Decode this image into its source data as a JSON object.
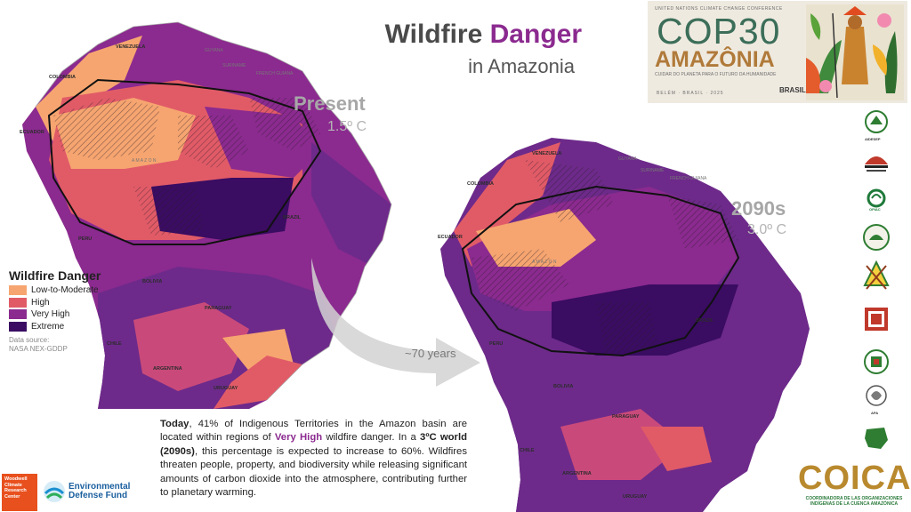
{
  "header": {
    "title_part1": "Wildfire ",
    "title_part2": "Danger",
    "subtitle": "in Amazonia"
  },
  "present": {
    "label": "Present",
    "temperature": "1.5º C"
  },
  "future": {
    "label": "2090s",
    "temperature": "3.0º C"
  },
  "arrow_label": "~70 years",
  "legend": {
    "title": "Wildfire Danger",
    "items": [
      {
        "label": "Low-to-Moderate",
        "color": "#f6a570"
      },
      {
        "label": "High",
        "color": "#e15b67"
      },
      {
        "label": "Very High",
        "color": "#8b2a8f"
      },
      {
        "label": "Extreme",
        "color": "#3a0c62"
      }
    ],
    "source_line1": "Data source:",
    "source_line2": "NASA NEX-GDDP"
  },
  "countries_present": {
    "venezuela": "VENEZUELA",
    "guyana": "GUYANA",
    "suriname": "SURINAME",
    "french_guiana": "FRENCH GUIANA",
    "colombia": "COLOMBIA",
    "ecuador": "ECUADOR",
    "peru": "PERU",
    "brazil": "BRAZIL",
    "bolivia": "BOLIVIA",
    "paraguay": "PARAGUAY",
    "chile": "CHILE",
    "argentina": "ARGENTINA",
    "uruguay": "URUGUAY",
    "amazon": "A M A Z O N"
  },
  "countries_future": {
    "venezuela": "VENEZUELA",
    "guyana": "GUYANA",
    "suriname": "SURINAME",
    "french_guiana": "FRENCH GUIANA",
    "colombia": "COLOMBIA",
    "ecuador": "ECUADOR",
    "peru": "PERU",
    "brazil": "BRAZIL",
    "bolivia": "BOLIVIA",
    "paraguay": "PARAGUAY",
    "chile": "CHILE",
    "argentina": "ARGENTINA",
    "uruguay": "URUGUAY",
    "amazon": "A M A Z O N"
  },
  "body": {
    "p1_bold": "Today",
    "p1_text": ", 41% of Indigenous Territories in the Amazon basin are located within regions of ",
    "p1_highlight": "Very High",
    "p1_text2": " wildfire danger. In a ",
    "p1_bold2": "3ºC world (2090s)",
    "p1_text3": ", this percentage is expected to increase to 60%. Wildfires threaten people, property, and biodiversity while releasing significant amounts of carbon dioxide into the atmosphere, contributing further to planetary warming."
  },
  "cop30": {
    "top_line": "UNITED NATIONS CLIMATE CHANGE CONFERENCE",
    "main": "COP30",
    "amazonia": "AMAZÔNIA",
    "tagline": "CUIDAR DO PLANETA PARA O FUTURO DA HUMANIDADE",
    "location": "BELÉM · BRASIL · 2025",
    "brasil": "BRASIL"
  },
  "org_logos": [
    "AIDESEP",
    "CONFENIAE",
    "OPIAC",
    "CIDOB",
    "CIDOB",
    "ORPIA",
    "CONAIE",
    "APA",
    "FOAG"
  ],
  "bottom_logos": {
    "woodwell": "Woodwell Climate Research Center",
    "edf": "Environmental Defense Fund",
    "coica": "COICA",
    "coica_sub": "COORDINADORA DE LAS ORGANIZACIONES INDÍGENAS DE LA CUENCA AMAZÓNICA"
  }
}
